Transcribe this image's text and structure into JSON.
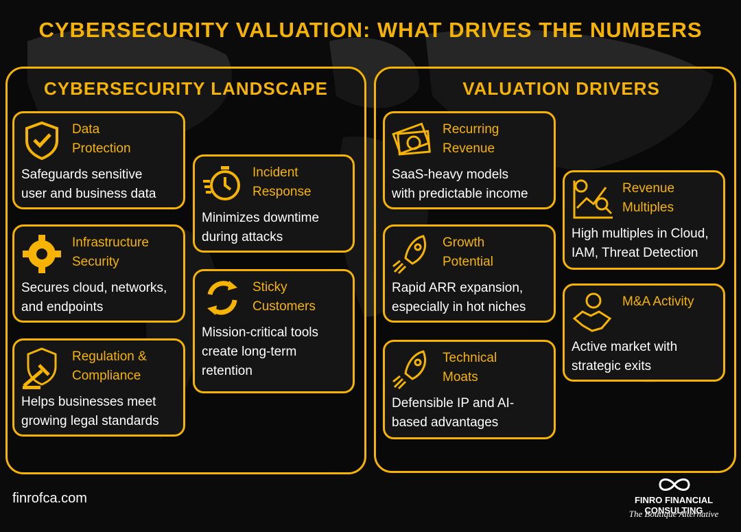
{
  "title": "CYBERSECURITY VALUATION: WHAT DRIVES THE NUMBERS",
  "panels": [
    {
      "title": "CYBERSECURITY LANDSCAPE",
      "cards": [
        {
          "title_lines": [
            "Data",
            "Protection"
          ],
          "text_lines": [
            "Safeguards sensitive",
            "user and business data"
          ]
        },
        {
          "title_lines": [
            "Infrastructure",
            "Security"
          ],
          "text_lines": [
            "Secures cloud, networks,",
            "and endpoints"
          ]
        },
        {
          "title_lines": [
            "Regulation &",
            "Compliance"
          ],
          "text_lines": [
            "Helps businesses meet",
            "growing legal standards"
          ]
        },
        {
          "title_lines": [
            "Incident",
            "Response"
          ],
          "text_lines": [
            "Minimizes downtime",
            "during attacks"
          ]
        },
        {
          "title_lines": [
            "Sticky",
            "Customers"
          ],
          "text_lines": [
            "Mission-critical tools",
            "create long-term",
            "retention"
          ]
        }
      ]
    },
    {
      "title": "VALUATION DRIVERS",
      "cards": [
        {
          "title_lines": [
            "Recurring",
            "Revenue"
          ],
          "text_lines": [
            "SaaS-heavy models",
            "with predictable income"
          ]
        },
        {
          "title_lines": [
            "Growth",
            "Potential"
          ],
          "text_lines": [
            "Rapid ARR expansion,",
            "especially in hot niches"
          ]
        },
        {
          "title_lines": [
            "Technical",
            "Moats"
          ],
          "text_lines": [
            "Defensible IP and AI-",
            "based advantages"
          ]
        },
        {
          "title_lines": [
            "Revenue",
            "Multiples"
          ],
          "text_lines": [
            "High multiples in Cloud,",
            "IAM, Threat Detection"
          ]
        },
        {
          "title_lines": [
            "M&A Activity"
          ],
          "text_lines": [
            "Active market with",
            "strategic exits"
          ]
        }
      ]
    }
  ],
  "footer": {
    "website": "finrofca.com",
    "brand": "FINRO FINANCIAL CONSULTING",
    "tagline": "The Boutique Alternative"
  }
}
